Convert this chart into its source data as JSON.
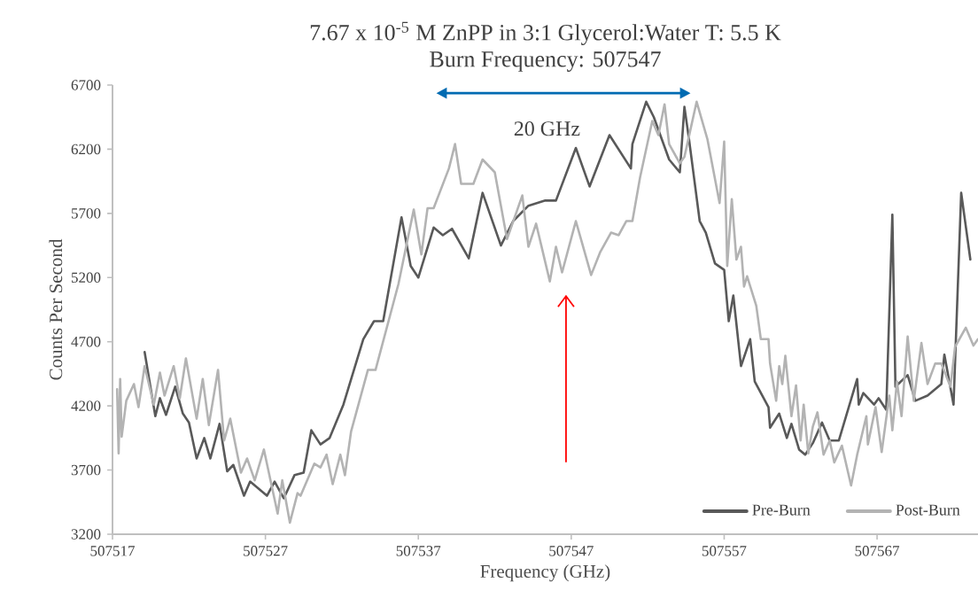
{
  "chart_data": {
    "type": "line",
    "title": "7.67 x 10$^{-5}$ M ZnPP in 3:1 Glycerol:Water   T: 5.5 K",
    "subtitle": "Burn Frequency: 507547",
    "xlabel": "Frequency (GHz)",
    "ylabel": "Counts Per Second",
    "annotations": [
      "20 GHz"
    ],
    "xlim": [
      507517,
      507573.6
    ],
    "xticks": [
      507517,
      507527,
      507537,
      507547,
      507557,
      507567
    ],
    "ylim": [
      3200,
      6700
    ],
    "yticks": [
      3200,
      3700,
      4200,
      4700,
      5200,
      5700,
      6200,
      6700
    ],
    "legend": "bottom right",
    "grid": false,
    "series": [
      {
        "name": "Pre-Burn",
        "color": "#595959",
        "x": [
          507519.1,
          507519.8,
          507520.1,
          507520.5,
          507521.1,
          507521.6,
          507522.0,
          507522.5,
          507523.0,
          507523.4,
          507524.0,
          507524.5,
          507524.9,
          507525.6,
          507526.0,
          507527.1,
          507527.6,
          507528.2,
          507528.9,
          507529.5,
          507530.0,
          507530.6,
          507531.2,
          507532.1,
          507533.4,
          507534.1,
          507534.7,
          507535.9,
          507536.5,
          507537.0,
          507538.0,
          507538.6,
          507539.2,
          507540.3,
          507541.2,
          507542.4,
          507543.2,
          507544.2,
          507545.3,
          507546.0,
          507547.3,
          507548.2,
          507549.5,
          507550.9,
          507551.0,
          507551.9,
          507552.4,
          507553.4,
          507554.1,
          507554.4,
          507554.7,
          507555.4,
          507555.8,
          507556.4,
          507557.0,
          507557.3,
          507557.6,
          507558.1,
          507558.7,
          507559.0,
          507559.9,
          507560.0,
          507560.6,
          507561.1,
          507561.4,
          507561.9,
          507562.3,
          507562.8,
          507563.4,
          507563.9,
          507564.5,
          507565.7,
          507565.8,
          507566.1,
          507566.8,
          507567.1,
          507567.6,
          507568.0,
          507568.2,
          507569.0,
          507569.5,
          507570.3,
          507571.2,
          507571.4,
          507572.0,
          507572.5,
          507573.1
        ],
        "values": [
          4620,
          4120,
          4260,
          4130,
          4350,
          4140,
          4070,
          3790,
          3950,
          3790,
          4060,
          3690,
          3740,
          3500,
          3610,
          3500,
          3610,
          3480,
          3660,
          3680,
          4010,
          3900,
          3950,
          4210,
          4720,
          4860,
          4860,
          5670,
          5290,
          5200,
          5590,
          5530,
          5580,
          5350,
          5860,
          5450,
          5640,
          5760,
          5800,
          5800,
          6210,
          5910,
          6310,
          6050,
          6240,
          6570,
          6450,
          6120,
          6020,
          6530,
          6280,
          5640,
          5550,
          5310,
          5260,
          4860,
          5060,
          4510,
          4720,
          4390,
          4190,
          4030,
          4140,
          3950,
          4060,
          3860,
          3820,
          3910,
          4070,
          3930,
          3930,
          4410,
          4210,
          4300,
          4210,
          4260,
          4170,
          5690,
          4350,
          4440,
          4240,
          4280,
          4370,
          4600,
          4210,
          5860,
          5340
        ]
      },
      {
        "name": "Post-Burn",
        "color": "#b3b3b3",
        "x": [
          507517.3,
          507517.4,
          507517.5,
          507517.6,
          507517.9,
          507518.4,
          507518.7,
          507519.1,
          507519.7,
          507520.1,
          507520.4,
          507521.0,
          507521.4,
          507521.8,
          507522.5,
          507522.9,
          507523.3,
          507523.9,
          507524.3,
          507524.7,
          507525.4,
          507525.8,
          507526.3,
          507526.9,
          507527.8,
          507528.1,
          507528.6,
          507529.1,
          507529.3,
          507530.2,
          507530.6,
          507531.0,
          507531.4,
          507531.9,
          507532.2,
          507532.6,
          507533.7,
          507534.2,
          507535.7,
          507536.7,
          507537.2,
          507537.6,
          507538.0,
          507539.0,
          507539.4,
          507539.8,
          507540.6,
          507541.2,
          507542.0,
          507542.8,
          507543.8,
          507544.2,
          507544.7,
          507545.6,
          507546.0,
          507546.4,
          507547.3,
          507548.3,
          507548.9,
          507549.6,
          507550.1,
          507550.6,
          507551.0,
          507551.5,
          507552.3,
          507552.7,
          507553.1,
          507553.4,
          507554.1,
          507554.4,
          507555.2,
          507555.9,
          507556.7,
          507557.0,
          507557.2,
          507557.5,
          507557.8,
          507558.1,
          507558.3,
          507558.5,
          507559.1,
          507559.4,
          507559.9,
          507560.0,
          507560.4,
          507560.6,
          507560.8,
          507561.0,
          507561.4,
          507561.7,
          507562.0,
          507562.2,
          507562.5,
          507562.8,
          507563.1,
          507563.5,
          507563.9,
          507564.2,
          507564.7,
          507565.3,
          507565.7,
          507566.3,
          507566.4,
          507566.9,
          507567.3,
          507567.8,
          507568.0,
          507568.3,
          507568.6,
          507569.0,
          507569.4,
          507569.9,
          507570.3,
          507570.8,
          507571.2,
          507571.8,
          507572.1,
          507572.8,
          507573.3,
          507573.6
        ],
        "values": [
          4330,
          3830,
          4410,
          3960,
          4240,
          4370,
          4190,
          4510,
          4210,
          4460,
          4280,
          4510,
          4260,
          4570,
          4100,
          4410,
          4050,
          4480,
          3930,
          4100,
          3680,
          3790,
          3620,
          3860,
          3360,
          3620,
          3290,
          3520,
          3500,
          3750,
          3720,
          3820,
          3590,
          3820,
          3660,
          4000,
          4480,
          4480,
          5150,
          5730,
          5380,
          5740,
          5740,
          6050,
          6240,
          5930,
          5930,
          6120,
          6020,
          5500,
          5840,
          5440,
          5620,
          5170,
          5440,
          5240,
          5640,
          5220,
          5400,
          5550,
          5530,
          5640,
          5640,
          5980,
          6420,
          6310,
          6550,
          6240,
          6090,
          6140,
          6570,
          6280,
          5780,
          6260,
          5290,
          5810,
          5340,
          5440,
          5130,
          5210,
          4980,
          4720,
          4720,
          4530,
          4240,
          4510,
          4370,
          4590,
          4120,
          4360,
          3930,
          4210,
          3830,
          4040,
          4150,
          3820,
          3930,
          3760,
          3890,
          3580,
          3820,
          4120,
          3900,
          4190,
          3840,
          4280,
          4010,
          4390,
          4120,
          4740,
          4240,
          4690,
          4370,
          4530,
          4530,
          4350,
          4660,
          4810,
          4670,
          4720
        ]
      }
    ]
  }
}
